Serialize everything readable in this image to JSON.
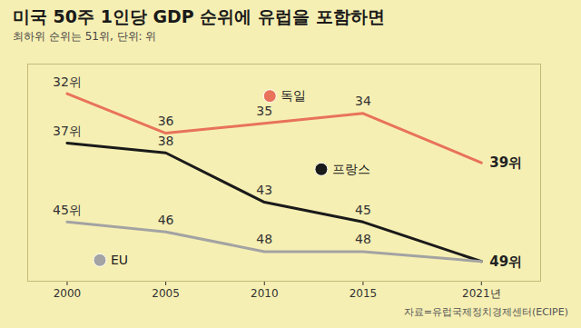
{
  "chart_data": {
    "type": "line",
    "title": "미국 50주 1인당 GDP 순위에 유럽을 포함하면",
    "subtitle": "최하위 순위는 51위, 단위: 위",
    "caption": "자료=유럽국제정치경제센터(ECIPE)",
    "x": [
      2000,
      2005,
      2010,
      2015,
      2021
    ],
    "xlim": [
      1998,
      2024
    ],
    "xticks": [
      2000,
      2005,
      2010,
      2015,
      {
        "value": 2021,
        "label": "2021년"
      }
    ],
    "ylim": [
      51,
      29
    ],
    "tick_labels": "x",
    "grid": false,
    "data_labels": true,
    "series": [
      {
        "name": "독일",
        "color": "#e8735a",
        "marker": "none",
        "values": [
          32,
          36,
          35,
          34,
          39
        ],
        "value_labels": [
          "32위",
          "36",
          "35",
          "34",
          "39위"
        ]
      },
      {
        "name": "프랑스",
        "color": "#1a1a1a",
        "marker": "none",
        "values": [
          37,
          38,
          43,
          45,
          49
        ],
        "value_labels": [
          "37위",
          "38",
          "43",
          "45",
          "49위"
        ]
      },
      {
        "name": "EU",
        "color": "#a3a3a3",
        "marker": "none",
        "values": [
          45,
          46,
          48,
          48,
          49
        ],
        "value_labels": [
          "45위",
          "46",
          "48",
          "48",
          null
        ]
      }
    ]
  }
}
